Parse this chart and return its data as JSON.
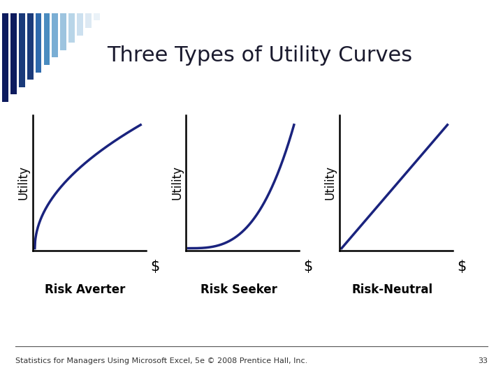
{
  "title": "Three Types of Utility Curves",
  "title_fontsize": 22,
  "title_color": "#1a1a2e",
  "bg_color": "#ffffff",
  "curve_color": "#1a237e",
  "curve_linewidth": 2.5,
  "axis_color": "#000000",
  "labels": [
    "Risk Averter",
    "Risk Seeker",
    "Risk-Neutral"
  ],
  "label_bg_color": "#d8d8d8",
  "ylabel": "Utility",
  "xlabel": "$",
  "footer": "Statistics for Managers Using Microsoft Excel, 5e © 2008 Prentice Hall, Inc.",
  "footer_fontsize": 8,
  "page_number": "33",
  "ylabel_fontsize": 12,
  "xlabel_fontsize": 15,
  "label_fontsize": 12,
  "stripe_colors": [
    "#0d1b5e",
    "#0d1b5e",
    "#1a3a7a",
    "#1a3a7a",
    "#2e6aad",
    "#4a8cc0",
    "#7aaed4",
    "#9dc4df",
    "#b8d5e8",
    "#cce0ef",
    "#dde9f3",
    "#eaf2f8"
  ],
  "top_bar_color": "#1a1a3e"
}
